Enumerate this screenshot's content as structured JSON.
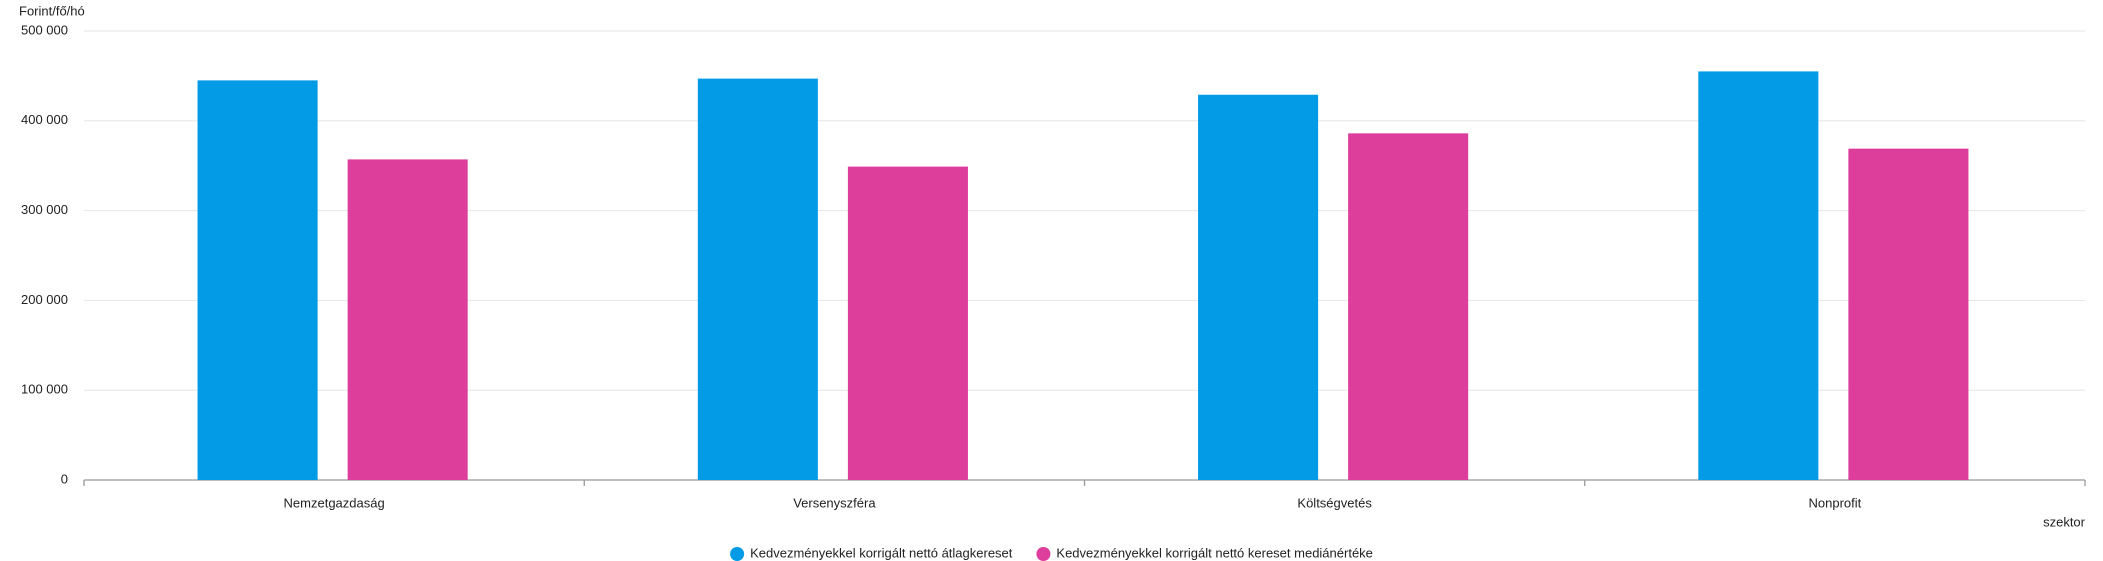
{
  "chart_data": {
    "type": "bar",
    "y_label": "Forint/fő/hó",
    "x_label": "szektor",
    "categories": [
      "Nemzetgazdaság",
      "Versenyszféra",
      "Költségvetés",
      "Nonprofit"
    ],
    "series": [
      {
        "name": "Kedvezményekkel korrigált nettó átlagkereset",
        "color": "#039be5",
        "values": [
          445000,
          447000,
          429000,
          455000
        ]
      },
      {
        "name": "Kedvezményekkel korrigált nettó kereset mediánértéke",
        "color": "#dd3d9b",
        "values": [
          357000,
          349000,
          386000,
          369000
        ]
      }
    ],
    "ylim": [
      0,
      500000
    ],
    "yticks": [
      0,
      {
        "value": 100000,
        "label": "100 000"
      },
      {
        "value": 200000,
        "label": "200 000"
      },
      {
        "value": 300000,
        "label": "300 000"
      },
      {
        "value": 400000,
        "label": "400 000"
      },
      {
        "value": 500000,
        "label": "500 000"
      }
    ],
    "grid": true
  }
}
